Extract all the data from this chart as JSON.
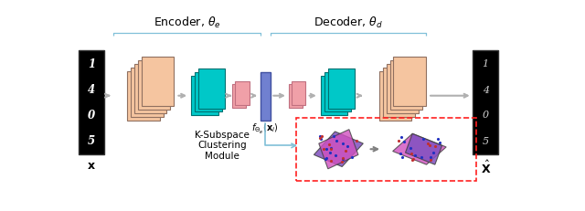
{
  "bg_color": "#ffffff",
  "encoder_label": "Encoder, $\\theta_e$",
  "decoder_label": "Decoder, $\\theta_d$",
  "x_label": "$\\mathbf{x}$",
  "xhat_label": "$\\hat{\\mathbf{X}}$",
  "fe_label": "$f_{\\Theta_e}(\\mathbf{x}_i)$",
  "ksc_label": "K-Subspace\nClustering\nModule",
  "peach_color": "#F5C5A0",
  "peach_edge": "#907060",
  "cyan_color": "#00C8C8",
  "cyan_edge": "#007070",
  "pink_color": "#F0A0A8",
  "pink_edge": "#C07080",
  "blue_bar_color": "#7080D0",
  "blue_bar_edge": "#4050A0",
  "arrow_color": "#B0B0B0",
  "brace_color": "#80C0D8",
  "purple1_color": "#8050C0",
  "purple2_color": "#D050C0",
  "dot_blue": "#2030C0",
  "dot_red": "#C03030",
  "ksc_box_color": "#FF2020"
}
